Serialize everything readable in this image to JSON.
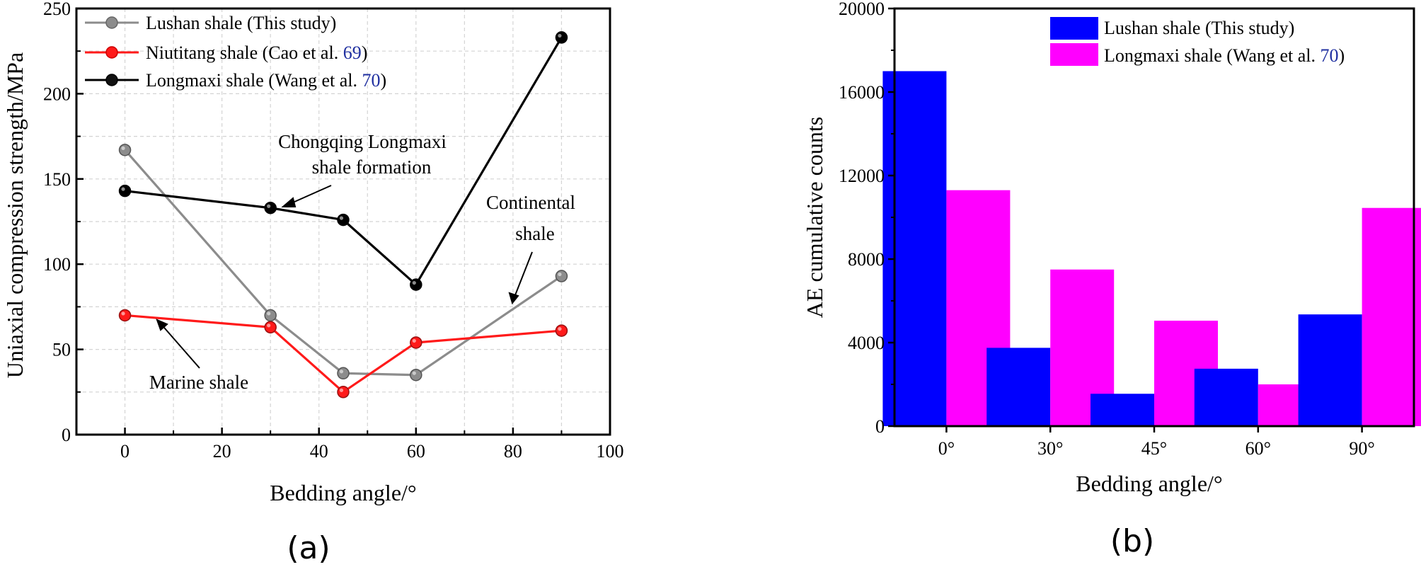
{
  "chart_data": [
    {
      "panel": "(a)",
      "type": "line",
      "xlabel": "Bedding angle/°",
      "ylabel": "Uniaxial compression strength/MPa",
      "xlim": [
        -10,
        100
      ],
      "ylim": [
        0,
        250
      ],
      "xticks": [
        "0",
        "20",
        "40",
        "60",
        "80",
        "100"
      ],
      "yticks": [
        "0",
        "50",
        "100",
        "150",
        "200",
        "250"
      ],
      "grid": true,
      "legend_position": "top-left",
      "series": [
        {
          "name": "Lushan shale (This study)",
          "legend_prefix": "Lushan shale (This study)",
          "legend_ref": "",
          "legend_suffix": "",
          "color": "#8c8c8c",
          "x": [
            0,
            30,
            45,
            60,
            90
          ],
          "y": [
            167,
            70,
            36,
            35,
            93
          ]
        },
        {
          "name": "Niutitang shale (Cao et al. 69)",
          "legend_prefix": "Niutitang shale (Cao et al. ",
          "legend_ref": "69",
          "legend_suffix": ")",
          "color": "#ff1a1a",
          "x": [
            0,
            30,
            45,
            60,
            90
          ],
          "y": [
            70,
            63,
            25,
            54,
            61
          ]
        },
        {
          "name": "Longmaxi shale (Wang et al. 70)",
          "legend_prefix": "Longmaxi shale (Wang et al. ",
          "legend_ref": "70",
          "legend_suffix": ")",
          "color": "#000000",
          "x": [
            0,
            30,
            45,
            60,
            90
          ],
          "y": [
            143,
            133,
            126,
            88,
            233
          ]
        }
      ],
      "annotations": {
        "chongqing_line1": "Chongqing Longmaxi",
        "chongqing_line2": "shale formation",
        "continental_line1": "Continental",
        "continental_line2": "shale",
        "marine": "Marine shale"
      }
    },
    {
      "panel": "(b)",
      "type": "bar",
      "xlabel": "Bedding angle/°",
      "ylabel": "AE cumulative counts",
      "categories": [
        "0°",
        "30°",
        "45°",
        "60°",
        "90°"
      ],
      "ylim": [
        0,
        20000
      ],
      "yticks": [
        "0",
        "4000",
        "8000",
        "12000",
        "16000",
        "20000"
      ],
      "grid": false,
      "legend_position": "top-right",
      "series": [
        {
          "name": "Lushan shale (This study)",
          "legend_prefix": "Lushan shale (This study)",
          "legend_ref": "",
          "legend_suffix": "",
          "color": "#0000ff",
          "values": [
            17000,
            3750,
            1550,
            2750,
            5350
          ]
        },
        {
          "name": "Longmaxi shale (Wang et al. 70)",
          "legend_prefix": "Longmaxi shale (Wang et al. ",
          "legend_ref": "70",
          "legend_suffix": ")",
          "color": "#ff00ff",
          "values": [
            11300,
            7500,
            5050,
            2000,
            10450
          ]
        }
      ]
    }
  ]
}
